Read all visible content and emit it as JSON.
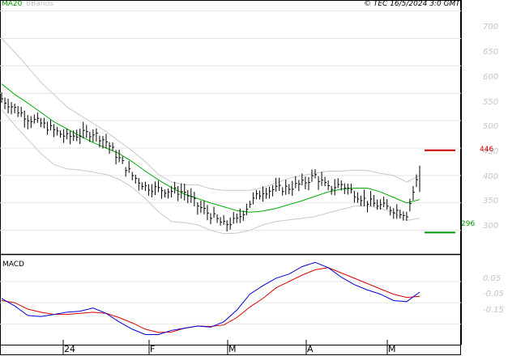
{
  "header": {
    "ma_label": "MA20",
    "bbands_label": "BBands",
    "copyright": "© TEC 16/5/2024 3:0 GMT"
  },
  "colors": {
    "ma": "#00aa00",
    "bbands": "#c8c8c8",
    "price": "#000000",
    "macd": "#0000dd",
    "signal": "#dd0000",
    "resistance": "#cc0000",
    "support": "#009900",
    "grid": "#e6e6e6"
  },
  "chart_data": [
    {
      "type": "line",
      "title": "",
      "series": [
        {
          "name": "MA20",
          "values": [
            567,
            548,
            532,
            515,
            498,
            485,
            472,
            460,
            450,
            440,
            425,
            408,
            392,
            378,
            366,
            358,
            350,
            343,
            336,
            333,
            335,
            340,
            347,
            354,
            362,
            370,
            375,
            377,
            377,
            370,
            360,
            350,
            356
          ]
        },
        {
          "name": "BBands",
          "values": [
            650,
            625,
            598,
            570,
            548,
            525,
            510,
            495,
            480,
            462,
            445,
            425,
            402,
            388,
            383,
            383,
            376,
            373,
            373,
            373,
            378,
            386,
            395,
            400,
            404,
            408,
            408,
            410,
            409,
            404,
            400,
            388,
            400
          ]
        },
        {
          "name": "BBands",
          "values": [
            520,
            492,
            466,
            440,
            420,
            412,
            410,
            406,
            402,
            393,
            378,
            358,
            334,
            316,
            314,
            310,
            300,
            294,
            295,
            300,
            310,
            316,
            319,
            322,
            325,
            332,
            338,
            344,
            345,
            340,
            332,
            318,
            322
          ]
        }
      ],
      "close": [
        540,
        522,
        505,
        495,
        482,
        470,
        475,
        478,
        462,
        430,
        400,
        380,
        375,
        372,
        370,
        345,
        328,
        310,
        318,
        350,
        372,
        375,
        378,
        385,
        400,
        376,
        384,
        368,
        352,
        345,
        338,
        330,
        410
      ],
      "ylim": [
        270,
        720
      ],
      "yticks": [
        "700",
        "650",
        "600",
        "550",
        "500",
        "450",
        "400",
        "350",
        "300"
      ],
      "levels": {
        "resistance": "446",
        "support": "296"
      },
      "xticks": [
        "24",
        "F",
        "M",
        "A",
        "M"
      ]
    },
    {
      "type": "line",
      "title": "MACD",
      "series": [
        {
          "name": "MACD",
          "values": [
            -0.03,
            -0.065,
            -0.11,
            -0.115,
            -0.105,
            -0.095,
            -0.09,
            -0.075,
            -0.1,
            -0.14,
            -0.175,
            -0.2,
            -0.2,
            -0.18,
            -0.17,
            -0.16,
            -0.165,
            -0.14,
            -0.085,
            -0.01,
            0.03,
            0.065,
            0.085,
            0.12,
            0.14,
            0.115,
            0.07,
            0.035,
            0.01,
            -0.01,
            -0.04,
            -0.045,
            0.0
          ]
        },
        {
          "name": "Signal",
          "values": [
            -0.04,
            -0.05,
            -0.08,
            -0.095,
            -0.105,
            -0.105,
            -0.1,
            -0.095,
            -0.1,
            -0.12,
            -0.145,
            -0.175,
            -0.19,
            -0.188,
            -0.17,
            -0.16,
            -0.162,
            -0.155,
            -0.12,
            -0.07,
            -0.03,
            0.02,
            0.05,
            0.08,
            0.105,
            0.115,
            0.09,
            0.065,
            0.04,
            0.015,
            -0.01,
            -0.025,
            -0.02
          ]
        }
      ],
      "ylim": [
        -0.24,
        0.16
      ],
      "yticks": [
        "0.05",
        "-0.05",
        "-0.15"
      ]
    }
  ]
}
